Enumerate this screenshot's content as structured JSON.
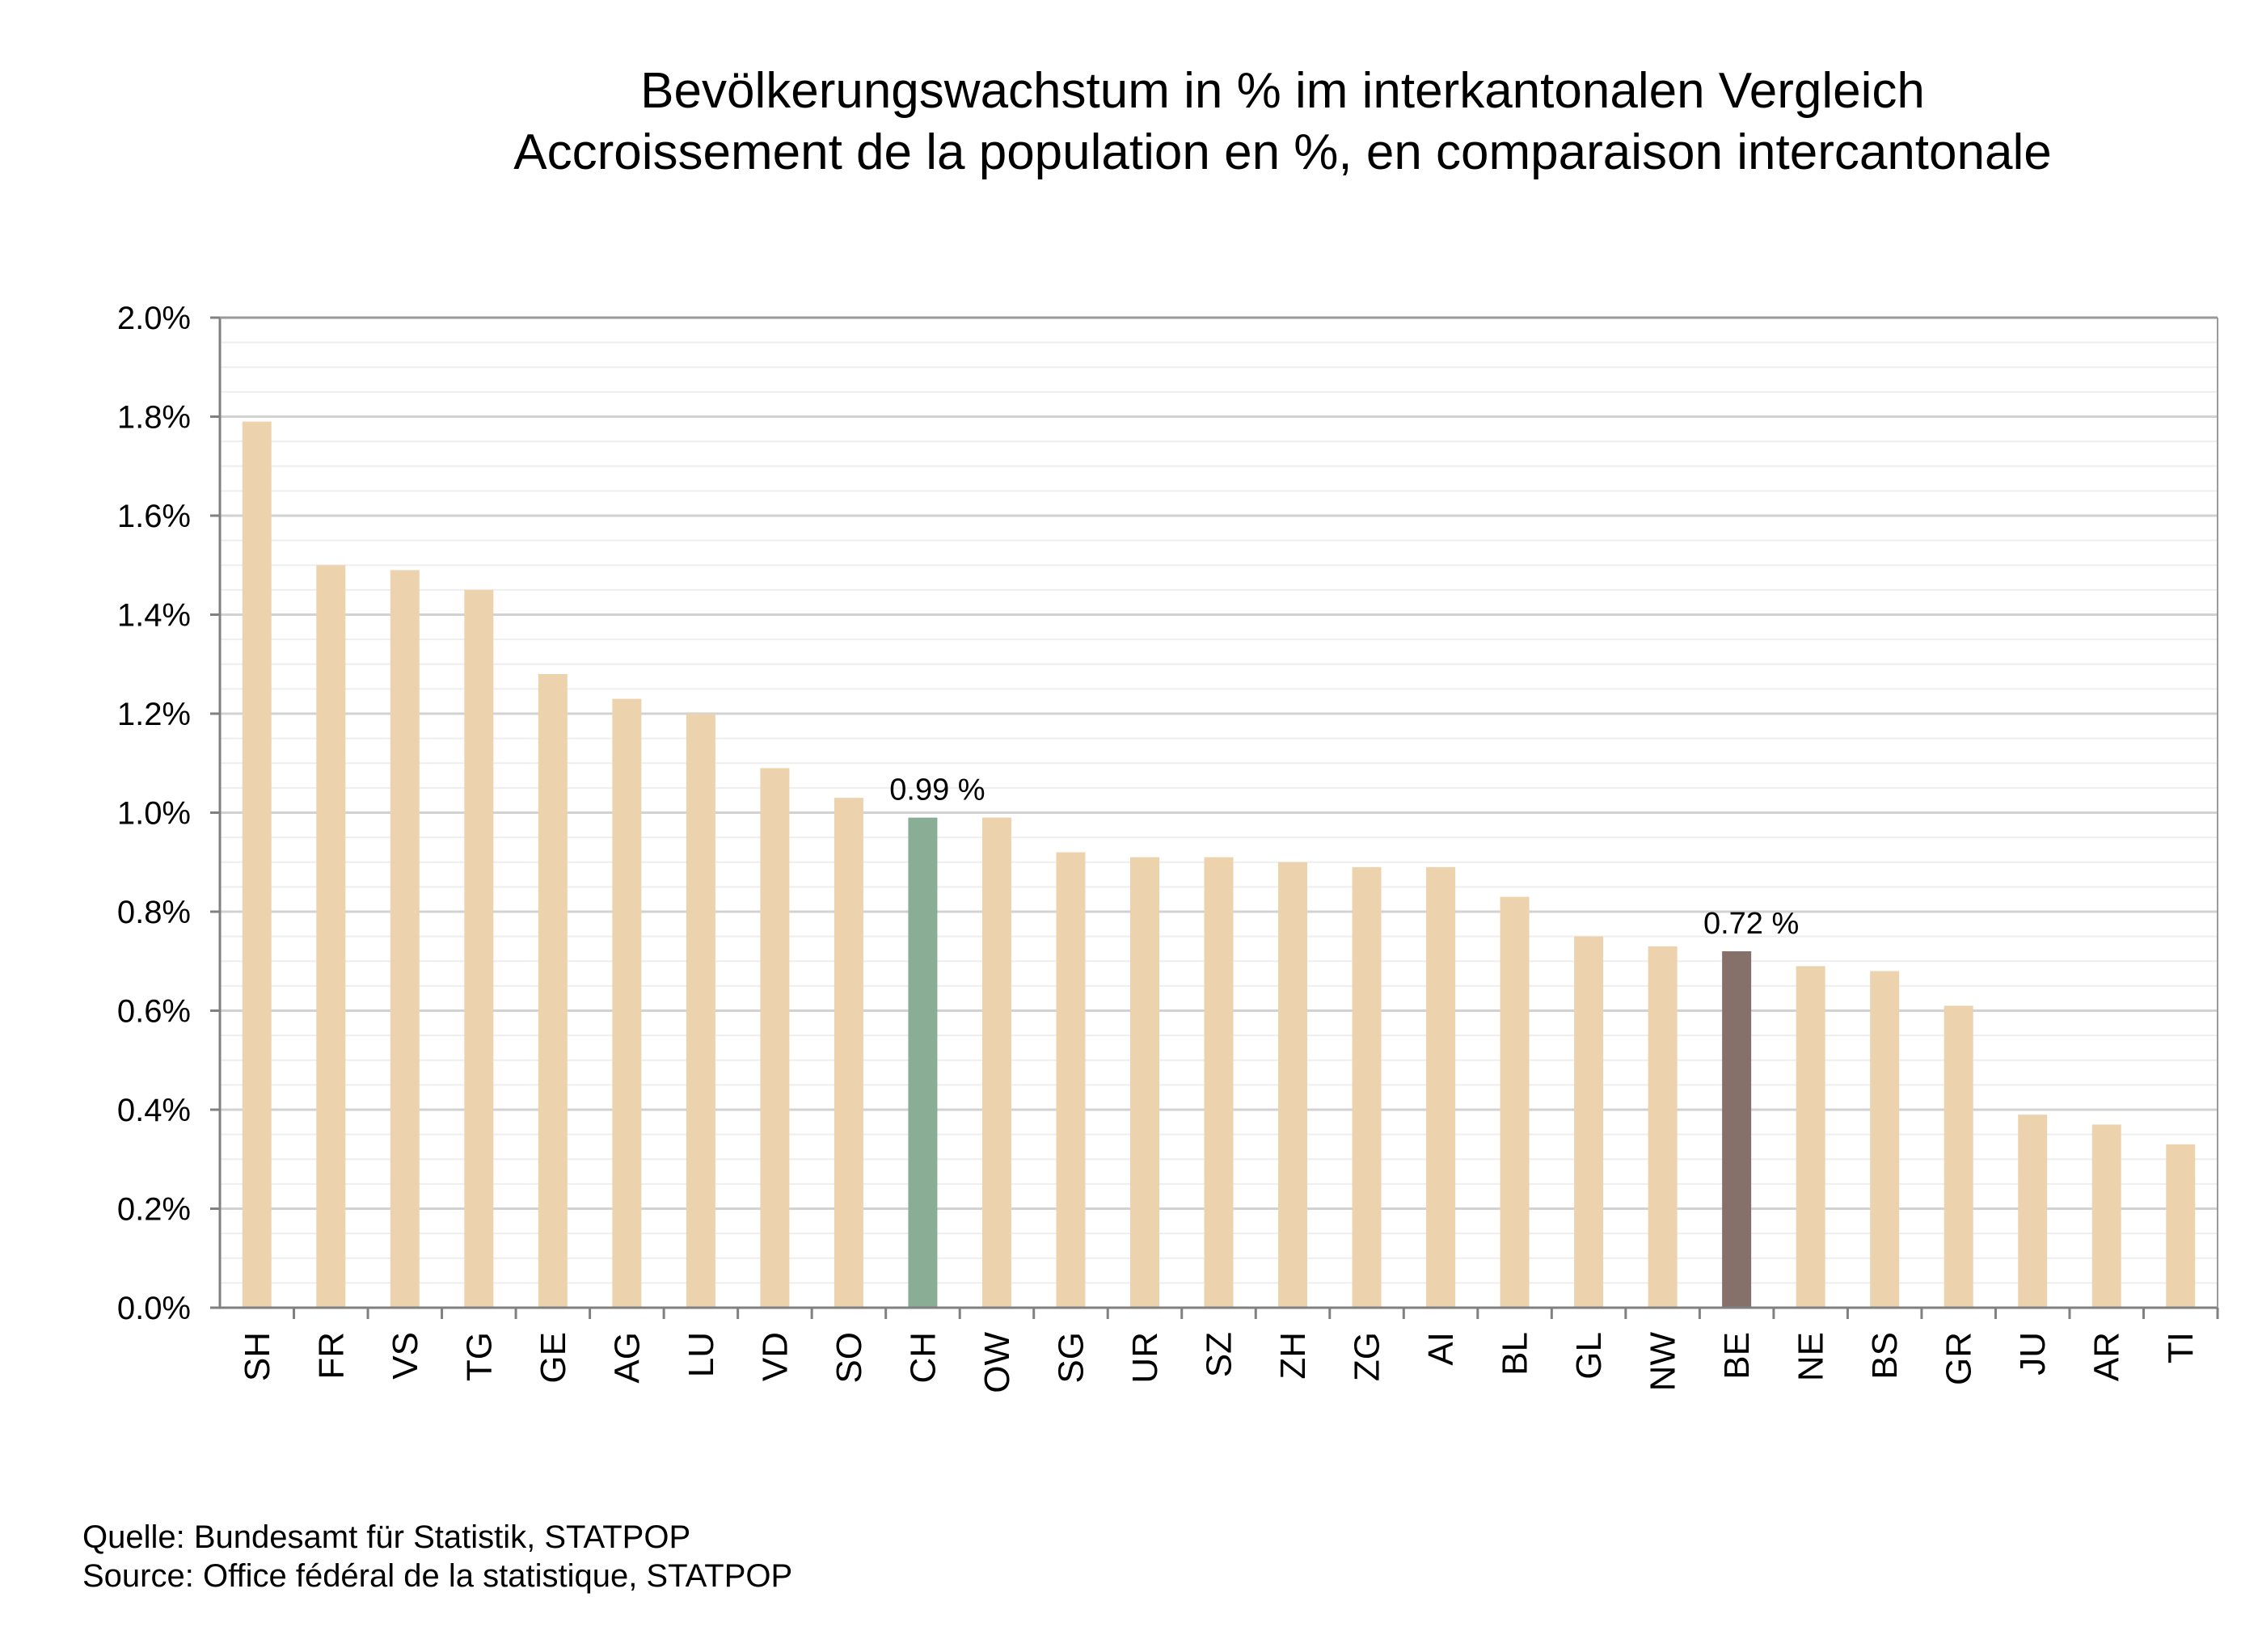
{
  "chart_data": {
    "type": "bar",
    "title": "Bevölkerungswachstum in % im interkantonalen Vergleich",
    "subtitle": "Accroissement de la population en %, en comparaison intercantonale",
    "xlabel": "",
    "ylabel": "",
    "ylim": [
      0,
      2.0
    ],
    "yticks": [
      "0.0%",
      "0.2%",
      "0.4%",
      "0.6%",
      "0.8%",
      "1.0%",
      "1.2%",
      "1.4%",
      "1.6%",
      "1.8%",
      "2.0%"
    ],
    "grid": true,
    "categories": [
      "SH",
      "FR",
      "VS",
      "TG",
      "GE",
      "AG",
      "LU",
      "VD",
      "SO",
      "CH",
      "OW",
      "SG",
      "UR",
      "SZ",
      "ZH",
      "ZG",
      "AI",
      "BL",
      "GL",
      "NW",
      "BE",
      "NE",
      "BS",
      "GR",
      "JU",
      "AR",
      "TI"
    ],
    "values": [
      1.79,
      1.5,
      1.49,
      1.45,
      1.28,
      1.23,
      1.2,
      1.09,
      1.03,
      0.99,
      0.99,
      0.92,
      0.91,
      0.91,
      0.9,
      0.89,
      0.89,
      0.83,
      0.75,
      0.73,
      0.72,
      0.69,
      0.68,
      0.61,
      0.39,
      0.37,
      0.33
    ],
    "colors": {
      "default": "#EDD3AD",
      "CH": "#8AAE95",
      "BE": "#85716A"
    },
    "data_labels": [
      {
        "category": "CH",
        "text": "0.99 %"
      },
      {
        "category": "BE",
        "text": "0.72 %"
      }
    ]
  },
  "source": {
    "line1": "Quelle: Bundesamt für Statistik,  STATPOP",
    "line2": "Source: Office fédéral de la statistique,  STATPOP"
  }
}
